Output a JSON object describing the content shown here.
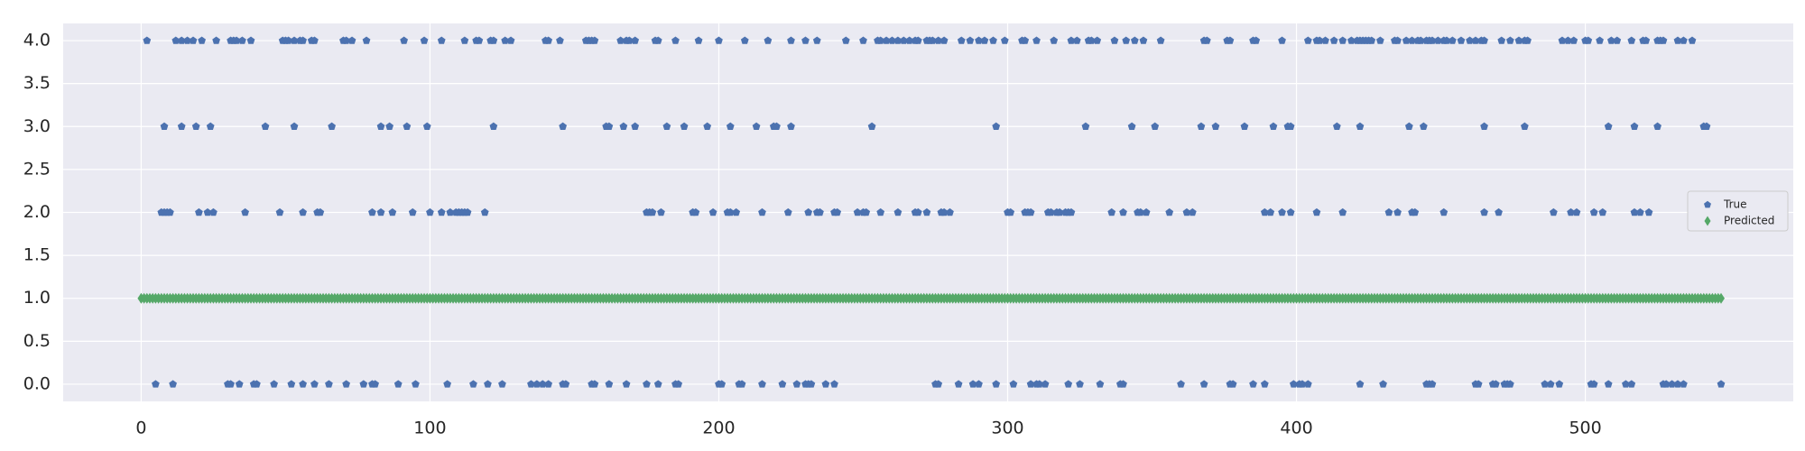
{
  "colors": {
    "plot_background": "#eaeaf2",
    "grid": "#ffffff",
    "true_series": "#4c72b0",
    "predicted_series": "#55a868"
  },
  "chart_data": {
    "type": "scatter",
    "title": "",
    "xlabel": "",
    "ylabel": "",
    "xlim": [
      -27,
      572
    ],
    "ylim": [
      -0.2,
      4.2
    ],
    "x_ticks": [
      0,
      100,
      200,
      300,
      400,
      500
    ],
    "y_ticks": [
      0.0,
      0.5,
      1.0,
      1.5,
      2.0,
      2.5,
      3.0,
      3.5,
      4.0
    ],
    "x_tick_labels": [
      "0",
      "100",
      "200",
      "300",
      "400",
      "500"
    ],
    "y_tick_labels": [
      "0.0",
      "0.5",
      "1.0",
      "1.5",
      "2.0",
      "2.5",
      "3.0",
      "3.5",
      "4.0"
    ],
    "grid": true,
    "legend_position": "right",
    "series": [
      {
        "name": "True",
        "marker": "pentagon",
        "color": "#4c72b0",
        "points": {
          "4": [
            2,
            12,
            14,
            16,
            18,
            21,
            26,
            31,
            32,
            33,
            35,
            38,
            49,
            50,
            51,
            53,
            55,
            56,
            59,
            60,
            70,
            71,
            73,
            78,
            91,
            98,
            104,
            112,
            116,
            117,
            121,
            122,
            126,
            128,
            140,
            141,
            145,
            154,
            155,
            156,
            157,
            166,
            168,
            169,
            171,
            178,
            179,
            185,
            193,
            200,
            209,
            217,
            225,
            230,
            234,
            244,
            250,
            255,
            256,
            258,
            260,
            262,
            264,
            266,
            268,
            269,
            272,
            273,
            274,
            276,
            278,
            284,
            287,
            290,
            292,
            295,
            299,
            305,
            306,
            310,
            316,
            322,
            324,
            328,
            329,
            331,
            337,
            341,
            344,
            347,
            353,
            368,
            369,
            376,
            377,
            385,
            386,
            395,
            404,
            407,
            408,
            410,
            413,
            416,
            419,
            421,
            422,
            423,
            424,
            425,
            426,
            429,
            434,
            435,
            438,
            440,
            442,
            443,
            445,
            446,
            447,
            449,
            451,
            452,
            454,
            457,
            460,
            462,
            464,
            465,
            471,
            474,
            477,
            479,
            480,
            492,
            494,
            496,
            500,
            501,
            505,
            509,
            511,
            516,
            520,
            521,
            525,
            526,
            527,
            532,
            534,
            537
          ],
          "3": [
            8,
            14,
            19,
            24,
            43,
            53,
            66,
            83,
            86,
            92,
            99,
            122,
            146,
            161,
            162,
            167,
            171,
            182,
            188,
            196,
            204,
            213,
            219,
            220,
            225,
            253,
            296,
            327,
            343,
            351,
            367,
            372,
            382,
            392,
            397,
            398,
            414,
            422,
            439,
            444,
            465,
            479,
            508,
            517,
            525,
            541,
            542
          ],
          "2": [
            7,
            8,
            9,
            10,
            20,
            23,
            25,
            36,
            48,
            56,
            61,
            62,
            80,
            83,
            87,
            94,
            100,
            104,
            107,
            109,
            110,
            111,
            112,
            113,
            119,
            175,
            176,
            177,
            180,
            191,
            192,
            198,
            203,
            204,
            206,
            215,
            224,
            231,
            234,
            235,
            240,
            241,
            248,
            250,
            251,
            256,
            262,
            268,
            269,
            272,
            277,
            278,
            280,
            300,
            301,
            306,
            307,
            308,
            314,
            315,
            317,
            318,
            320,
            321,
            322,
            336,
            340,
            345,
            346,
            348,
            356,
            362,
            364,
            389,
            391,
            395,
            398,
            407,
            416,
            432,
            435,
            440,
            441,
            451,
            465,
            470,
            489,
            495,
            497,
            503,
            506,
            517,
            519,
            522
          ],
          "0": [
            5,
            11,
            30,
            31,
            34,
            39,
            40,
            46,
            52,
            56,
            60,
            65,
            71,
            77,
            80,
            81,
            89,
            95,
            106,
            115,
            120,
            125,
            135,
            137,
            139,
            141,
            146,
            147,
            156,
            157,
            162,
            168,
            175,
            179,
            185,
            186,
            200,
            201,
            207,
            208,
            215,
            222,
            227,
            230,
            231,
            232,
            237,
            240,
            275,
            276,
            283,
            288,
            290,
            296,
            302,
            308,
            310,
            311,
            313,
            321,
            325,
            332,
            339,
            340,
            360,
            368,
            377,
            378,
            385,
            389,
            399,
            401,
            402,
            404,
            422,
            430,
            445,
            446,
            447,
            462,
            463,
            468,
            469,
            472,
            473,
            474,
            486,
            488,
            491,
            502,
            503,
            508,
            514,
            516,
            527,
            528,
            530,
            532,
            534,
            547
          ]
        }
      },
      {
        "name": "Predicted",
        "marker": "diamond",
        "color": "#55a868",
        "x_start": 0,
        "x_end": 547,
        "x_step": 1,
        "value": 1.0
      }
    ]
  }
}
